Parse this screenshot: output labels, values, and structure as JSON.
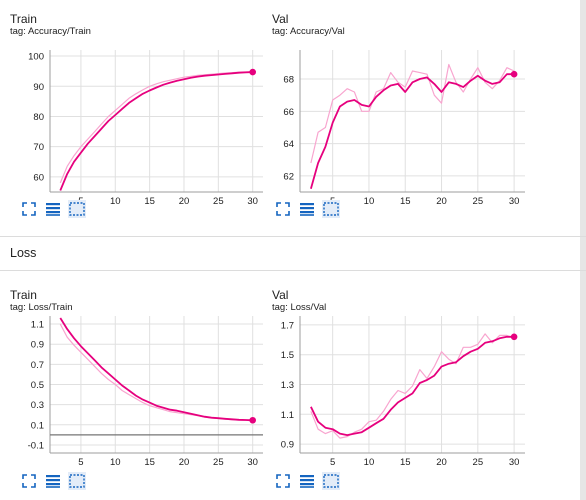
{
  "theme": {
    "line_color": "#e6007e",
    "raw_line_color": "#f8a5cf",
    "grid_color": "#e0e0e0",
    "axis_color": "#9e9e9e"
  },
  "toolbar": {
    "icons": [
      "fullscreen-icon",
      "data-table-icon",
      "fit-domain-icon"
    ]
  },
  "sections": [
    {
      "title": "Loss"
    }
  ],
  "cards": [
    {
      "title": "Train",
      "tag": "tag: Accuracy/Train"
    },
    {
      "title": "Val",
      "tag": "tag: Accuracy/Val"
    },
    {
      "title": "Train",
      "tag": "tag: Loss/Train"
    },
    {
      "title": "Val",
      "tag": "tag: Loss/Val"
    }
  ],
  "chart_data": [
    {
      "type": "line",
      "title": "Train",
      "subtitle": "tag: Accuracy/Train",
      "xlim": [
        0.5,
        31.5
      ],
      "ylim": [
        55,
        102
      ],
      "xticks": [
        5,
        10,
        15,
        20,
        25,
        30
      ],
      "yticks": [
        60,
        70,
        80,
        90,
        100
      ],
      "grid": true,
      "series": [
        {
          "role": "smoothed",
          "x": [
            2,
            3,
            4,
            5,
            6,
            7,
            8,
            9,
            10,
            11,
            12,
            13,
            14,
            15,
            16,
            17,
            18,
            19,
            20,
            21,
            22,
            23,
            24,
            25,
            26,
            27,
            28,
            29,
            30
          ],
          "y": [
            55.5,
            61,
            65,
            68,
            71,
            73.5,
            76,
            78.5,
            80.5,
            82.5,
            84.5,
            86,
            87.5,
            88.6,
            89.6,
            90.5,
            91.2,
            91.8,
            92.3,
            92.8,
            93.2,
            93.5,
            93.7,
            93.9,
            94.1,
            94.3,
            94.5,
            94.6,
            94.7
          ]
        },
        {
          "role": "raw",
          "x": [
            2,
            3,
            4,
            5,
            6,
            7,
            8,
            9,
            10,
            11,
            12,
            13,
            14,
            15,
            16,
            17,
            18,
            19,
            20,
            21,
            22,
            23,
            24,
            25,
            26,
            27,
            28,
            29,
            30
          ],
          "y": [
            58,
            63.5,
            67,
            70,
            72.5,
            75,
            77.5,
            80,
            82,
            84,
            86,
            87.5,
            88.8,
            90,
            90.8,
            91.5,
            92,
            92.5,
            93,
            93.3,
            93.6,
            93.8,
            94,
            94.2,
            94.4,
            94.5,
            94.7,
            94.8,
            94.9
          ]
        }
      ]
    },
    {
      "type": "line",
      "title": "Val",
      "subtitle": "tag: Accuracy/Val",
      "xlim": [
        0.5,
        31.5
      ],
      "ylim": [
        61,
        69.8
      ],
      "xticks": [
        5,
        10,
        15,
        20,
        25,
        30
      ],
      "yticks": [
        62,
        64,
        66,
        68
      ],
      "grid": true,
      "series": [
        {
          "role": "smoothed",
          "x": [
            2,
            3,
            4,
            5,
            6,
            7,
            8,
            9,
            10,
            11,
            12,
            13,
            14,
            15,
            16,
            17,
            18,
            19,
            20,
            21,
            22,
            23,
            24,
            25,
            26,
            27,
            28,
            29,
            30
          ],
          "y": [
            61.2,
            62.8,
            63.8,
            65.3,
            66.3,
            66.6,
            66.7,
            66.4,
            66.3,
            66.9,
            67.3,
            67.6,
            67.7,
            67.2,
            67.8,
            68,
            68.1,
            67.7,
            67.2,
            67.8,
            67.7,
            67.5,
            67.9,
            68.2,
            67.9,
            67.7,
            67.8,
            68.3,
            68.3
          ]
        },
        {
          "role": "raw",
          "x": [
            2,
            3,
            4,
            5,
            6,
            7,
            8,
            9,
            10,
            11,
            12,
            13,
            14,
            15,
            16,
            17,
            18,
            19,
            20,
            21,
            22,
            23,
            24,
            25,
            26,
            27,
            28,
            29,
            30
          ],
          "y": [
            62.8,
            64.7,
            65,
            66.7,
            67,
            67.4,
            67.2,
            66,
            66,
            67.2,
            67.4,
            68.4,
            67.8,
            67.5,
            68.5,
            68.4,
            68.3,
            67,
            66.5,
            68.9,
            67.8,
            67.2,
            68,
            68.7,
            67.8,
            67.4,
            67.9,
            68.7,
            68.5
          ]
        }
      ]
    },
    {
      "type": "line",
      "title": "Train",
      "subtitle": "tag: Loss/Train",
      "xlim": [
        0.5,
        31.5
      ],
      "ylim": [
        -0.18,
        1.18
      ],
      "xticks": [
        5,
        10,
        15,
        20,
        25,
        30
      ],
      "yticks": [
        -0.1,
        0.1,
        0.3,
        0.5,
        0.7,
        0.9,
        1.1
      ],
      "grid": true,
      "series": [
        {
          "role": "smoothed",
          "x": [
            2,
            3,
            4,
            5,
            6,
            7,
            8,
            9,
            10,
            11,
            12,
            13,
            14,
            15,
            16,
            17,
            18,
            19,
            20,
            21,
            22,
            23,
            24,
            25,
            26,
            27,
            28,
            29,
            30
          ],
          "y": [
            1.16,
            1.05,
            0.96,
            0.88,
            0.81,
            0.74,
            0.67,
            0.61,
            0.55,
            0.49,
            0.44,
            0.39,
            0.35,
            0.32,
            0.29,
            0.27,
            0.25,
            0.24,
            0.225,
            0.21,
            0.195,
            0.18,
            0.17,
            0.165,
            0.16,
            0.155,
            0.15,
            0.148,
            0.145
          ]
        },
        {
          "role": "raw",
          "x": [
            2,
            3,
            4,
            5,
            6,
            7,
            8,
            9,
            10,
            11,
            12,
            13,
            14,
            15,
            16,
            17,
            18,
            19,
            20,
            21,
            22,
            23,
            24,
            25,
            26,
            27,
            28,
            29,
            30
          ],
          "y": [
            1.1,
            0.97,
            0.89,
            0.82,
            0.75,
            0.68,
            0.61,
            0.55,
            0.5,
            0.44,
            0.4,
            0.36,
            0.32,
            0.29,
            0.27,
            0.25,
            0.23,
            0.22,
            0.21,
            0.2,
            0.19,
            0.175,
            0.168,
            0.162,
            0.156,
            0.15,
            0.148,
            0.145,
            0.14
          ]
        }
      ]
    },
    {
      "type": "line",
      "title": "Val",
      "subtitle": "tag: Loss/Val",
      "xlim": [
        0.5,
        31.5
      ],
      "ylim": [
        0.84,
        1.76
      ],
      "xticks": [
        5,
        10,
        15,
        20,
        25,
        30
      ],
      "yticks": [
        0.9,
        1.1,
        1.3,
        1.5,
        1.7
      ],
      "grid": true,
      "series": [
        {
          "role": "smoothed",
          "x": [
            2,
            3,
            4,
            5,
            6,
            7,
            8,
            9,
            10,
            11,
            12,
            13,
            14,
            15,
            16,
            17,
            18,
            19,
            20,
            21,
            22,
            23,
            24,
            25,
            26,
            27,
            28,
            29,
            30
          ],
          "y": [
            1.15,
            1.05,
            1.01,
            1.0,
            0.97,
            0.96,
            0.97,
            0.98,
            1.01,
            1.04,
            1.07,
            1.13,
            1.18,
            1.21,
            1.24,
            1.31,
            1.33,
            1.36,
            1.42,
            1.44,
            1.45,
            1.49,
            1.52,
            1.54,
            1.58,
            1.59,
            1.61,
            1.62,
            1.62
          ]
        },
        {
          "role": "raw",
          "x": [
            2,
            3,
            4,
            5,
            6,
            7,
            8,
            9,
            10,
            11,
            12,
            13,
            14,
            15,
            16,
            17,
            18,
            19,
            20,
            21,
            22,
            23,
            24,
            25,
            26,
            27,
            28,
            29,
            30
          ],
          "y": [
            1.12,
            1.0,
            0.97,
            0.99,
            0.94,
            0.95,
            0.98,
            1.0,
            1.05,
            1.06,
            1.12,
            1.2,
            1.26,
            1.24,
            1.29,
            1.4,
            1.34,
            1.42,
            1.52,
            1.47,
            1.44,
            1.55,
            1.55,
            1.57,
            1.64,
            1.58,
            1.63,
            1.63,
            1.61
          ]
        }
      ]
    }
  ]
}
